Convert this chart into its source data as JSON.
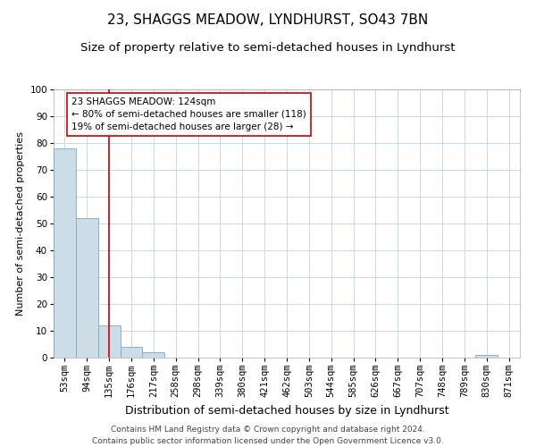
{
  "title": "23, SHAGGS MEADOW, LYNDHURST, SO43 7BN",
  "subtitle": "Size of property relative to semi-detached houses in Lyndhurst",
  "xlabel": "Distribution of semi-detached houses by size in Lyndhurst",
  "ylabel": "Number of semi-detached properties",
  "categories": [
    "53sqm",
    "94sqm",
    "135sqm",
    "176sqm",
    "217sqm",
    "258sqm",
    "298sqm",
    "339sqm",
    "380sqm",
    "421sqm",
    "462sqm",
    "503sqm",
    "544sqm",
    "585sqm",
    "626sqm",
    "667sqm",
    "707sqm",
    "748sqm",
    "789sqm",
    "830sqm",
    "871sqm"
  ],
  "values": [
    78,
    52,
    12,
    4,
    2,
    0,
    0,
    0,
    0,
    0,
    0,
    0,
    0,
    0,
    0,
    0,
    0,
    0,
    0,
    1,
    0
  ],
  "bar_color": "#ccdde8",
  "bar_edge_color": "#7aaabb",
  "red_line_index": 2,
  "red_line_color": "#cc0000",
  "annotation_text": "23 SHAGGS MEADOW: 124sqm\n← 80% of semi-detached houses are smaller (118)\n19% of semi-detached houses are larger (28) →",
  "annotation_box_color": "#ffffff",
  "annotation_box_edge_color": "#cc0000",
  "ylim": [
    0,
    100
  ],
  "yticks": [
    0,
    10,
    20,
    30,
    40,
    50,
    60,
    70,
    80,
    90,
    100
  ],
  "title_fontsize": 11,
  "subtitle_fontsize": 9.5,
  "xlabel_fontsize": 9,
  "ylabel_fontsize": 8,
  "tick_fontsize": 7.5,
  "annotation_fontsize": 7.5,
  "footer_text": "Contains HM Land Registry data © Crown copyright and database right 2024.\nContains public sector information licensed under the Open Government Licence v3.0.",
  "footer_fontsize": 6.5,
  "background_color": "#ffffff",
  "grid_color": "#c8d8e8"
}
